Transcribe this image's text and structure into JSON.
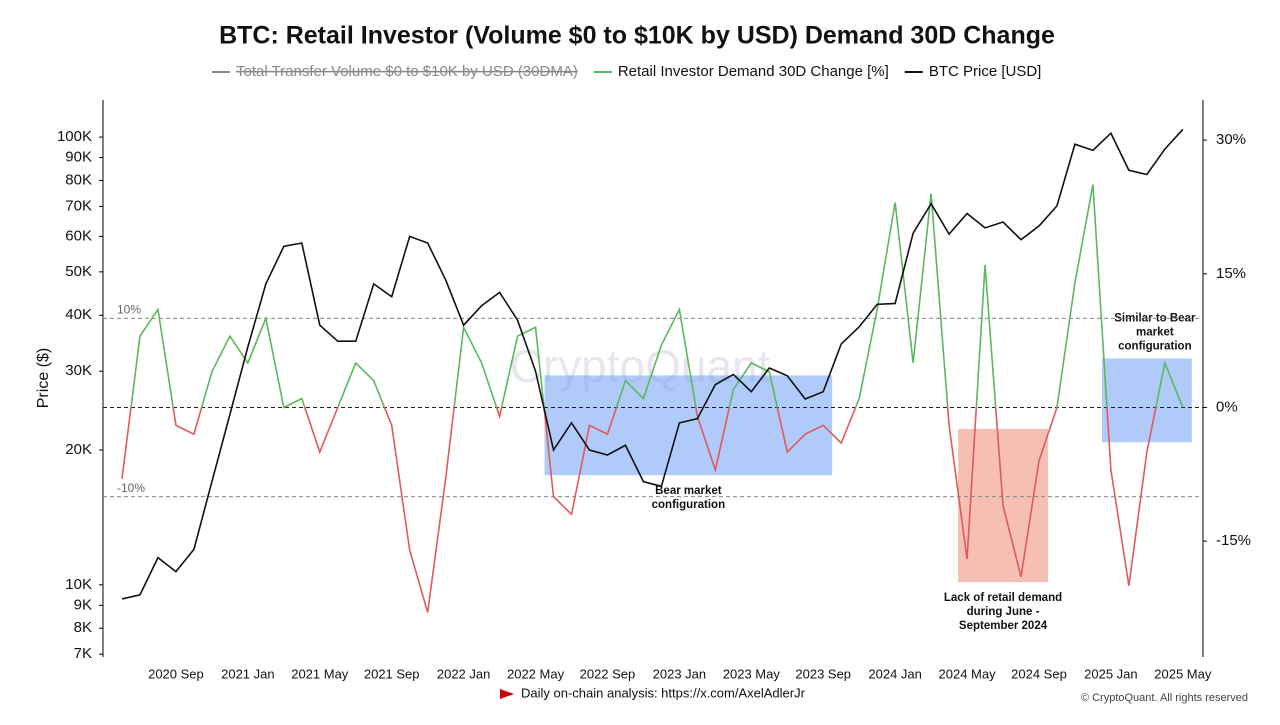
{
  "chart_data": {
    "type": "line",
    "title": "BTC: Retail Investor (Volume $0 to $10K by USD) Demand 30D Change",
    "y_label": "Price ($)",
    "x": [
      "2020 Jun",
      "2020 Jul",
      "2020 Aug",
      "2020 Sep",
      "2020 Oct",
      "2020 Nov",
      "2020 Dec",
      "2021 Jan",
      "2021 Feb",
      "2021 Mar",
      "2021 Apr",
      "2021 May",
      "2021 Jun",
      "2021 Jul",
      "2021 Aug",
      "2021 Sep",
      "2021 Oct",
      "2021 Nov",
      "2021 Dec",
      "2022 Jan",
      "2022 Feb",
      "2022 Mar",
      "2022 Apr",
      "2022 May",
      "2022 Jun",
      "2022 Jul",
      "2022 Aug",
      "2022 Sep",
      "2022 Oct",
      "2022 Nov",
      "2022 Dec",
      "2023 Jan",
      "2023 Feb",
      "2023 Mar",
      "2023 Apr",
      "2023 May",
      "2023 Jun",
      "2023 Jul",
      "2023 Aug",
      "2023 Sep",
      "2023 Oct",
      "2023 Nov",
      "2023 Dec",
      "2024 Jan",
      "2024 Feb",
      "2024 Mar",
      "2024 Apr",
      "2024 May",
      "2024 Jun",
      "2024 Jul",
      "2024 Aug",
      "2024 Sep",
      "2024 Oct",
      "2024 Nov",
      "2024 Dec",
      "2025 Jan",
      "2025 Feb",
      "2025 Mar",
      "2025 Apr",
      "2025 May"
    ],
    "xticks": [
      "2020 Sep",
      "2021 Jan",
      "2021 May",
      "2021 Sep",
      "2022 Jan",
      "2022 May",
      "2022 Sep",
      "2023 Jan",
      "2023 May",
      "2023 Sep",
      "2024 Jan",
      "2024 May",
      "2024 Sep",
      "2025 Jan",
      "2025 May"
    ],
    "hidden_series": [
      {
        "name": "Total Transfer Volume  $0 to $10K by USD (30DMA)",
        "color": "#888888"
      }
    ],
    "series": [
      {
        "name": "Retail Investor Demand 30D Change [%]",
        "axis": "y2",
        "color": "#5cb85c",
        "negative_color": "#e05a5a",
        "values": [
          -8,
          8,
          11,
          -2,
          -3,
          4,
          8,
          5,
          10,
          0,
          1,
          -5,
          0,
          5,
          3,
          -2,
          -16,
          -23,
          -8,
          9,
          5,
          -1,
          8,
          9,
          -10,
          -12,
          -2,
          -3,
          3,
          1,
          7,
          11,
          -1,
          -7,
          2,
          5,
          4,
          -5,
          -3,
          -2,
          -4,
          1,
          11,
          23,
          5,
          24,
          -2,
          -17,
          16,
          -11,
          -19,
          -6,
          0,
          14,
          25,
          -7,
          -20,
          -5,
          5,
          0
        ]
      },
      {
        "name": "BTC Price [USD]",
        "color": "#111111",
        "values": [
          9300,
          9500,
          11500,
          10700,
          12000,
          17000,
          24000,
          34000,
          47000,
          57000,
          58000,
          38000,
          35000,
          35000,
          47000,
          44000,
          60000,
          58000,
          48000,
          38000,
          42000,
          45000,
          39000,
          30000,
          20000,
          23000,
          20000,
          19500,
          20500,
          17000,
          16600,
          23000,
          23500,
          28000,
          29500,
          27000,
          30500,
          29300,
          26000,
          27000,
          34500,
          37700,
          42300,
          42500,
          61000,
          71000,
          60700,
          67500,
          62700,
          64600,
          59000,
          63300,
          70200,
          96400,
          93400,
          102000,
          84300,
          82500,
          94000,
          104000
        ]
      }
    ],
    "ylim": [
      6900,
      121000
    ],
    "log_scale": true,
    "yticks": [
      {
        "value": 100000,
        "label": "100K"
      },
      {
        "value": 90000,
        "label": "90K"
      },
      {
        "value": 80000,
        "label": "80K"
      },
      {
        "value": 70000,
        "label": "70K"
      },
      {
        "value": 60000,
        "label": "60K"
      },
      {
        "value": 50000,
        "label": "50K"
      },
      {
        "value": 40000,
        "label": "40K"
      },
      {
        "value": 30000,
        "label": "30K"
      },
      {
        "value": 20000,
        "label": "20K"
      },
      {
        "value": 10000,
        "label": "10K"
      },
      {
        "value": 9000,
        "label": "9K"
      },
      {
        "value": 8000,
        "label": "8K"
      },
      {
        "value": 7000,
        "label": "7K"
      }
    ],
    "y2lim": [
      -28,
      34.5
    ],
    "y2ticks": [
      {
        "value": 30,
        "label": "30%"
      },
      {
        "value": 15,
        "label": "15%"
      },
      {
        "value": 0,
        "label": "0%"
      },
      {
        "value": -15,
        "label": "-15%"
      }
    ],
    "ref_lines": [
      {
        "value": 10,
        "label": "10%"
      },
      {
        "value": 0,
        "label": ""
      },
      {
        "value": -10,
        "label": "-10%"
      }
    ],
    "regions": [
      {
        "x": [
          "2022 Jun",
          "2023 Sep"
        ],
        "y": [
          -7.6,
          3.6
        ],
        "color": "#6f9ef5",
        "text": [
          "Bear market",
          "configuration"
        ]
      },
      {
        "x": [
          "2024 May",
          "2024 Sep"
        ],
        "y": [
          -19.6,
          -2.4
        ],
        "color": "#ec8a74",
        "text": [
          "Lack of retail demand",
          "during June -",
          "September 2024"
        ]
      },
      {
        "x": [
          "2025 Jan",
          "2025 May"
        ],
        "y": [
          -3.9,
          5.5
        ],
        "color": "#6f9ef5",
        "text": [
          "Similar to Bear",
          "market",
          "configuration"
        ]
      }
    ],
    "watermark": "CryptoQuant",
    "footer": "Daily on-chain analysis: https://x.com/AxelAdlerJr",
    "copyright": "© CryptoQuant. All rights reserved"
  }
}
